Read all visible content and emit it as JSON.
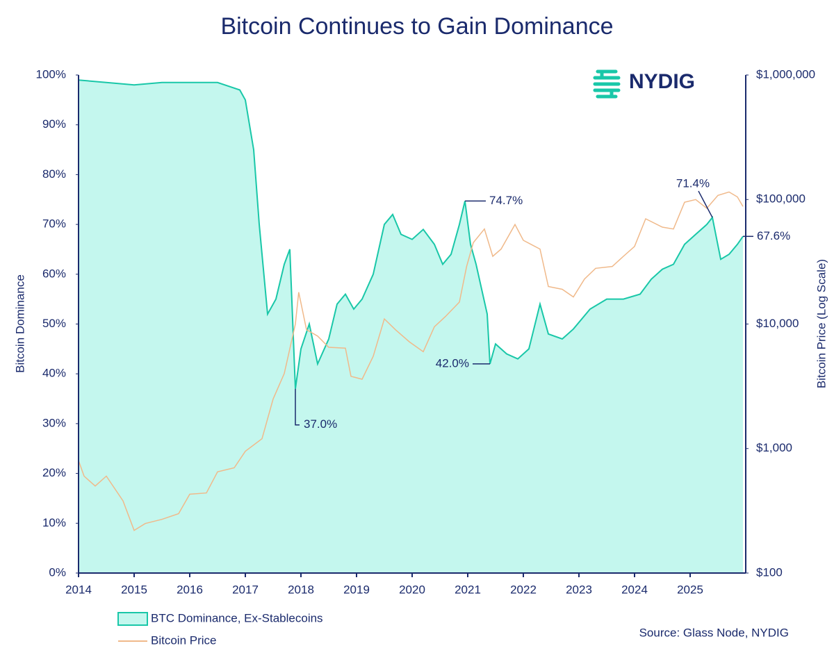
{
  "chart_data": {
    "type": "area",
    "title": "Bitcoin Continues to Gain Dominance",
    "logo": "NYDIG",
    "y_label": "Bitcoin Dominance",
    "y2_label": "Bitcoin Price (Log Scale)",
    "source": "Source: Glass Node, NYDIG",
    "xlim": [
      2014,
      2026
    ],
    "xticks": [
      2014,
      2015,
      2016,
      2017,
      2018,
      2019,
      2020,
      2021,
      2022,
      2023,
      2024,
      2025
    ],
    "ylim": [
      0,
      100
    ],
    "yticks": [
      {
        "value": 0,
        "label": "0%"
      },
      {
        "value": 10,
        "label": "10%"
      },
      {
        "value": 20,
        "label": "20%"
      },
      {
        "value": 30,
        "label": "30%"
      },
      {
        "value": 40,
        "label": "40%"
      },
      {
        "value": 50,
        "label": "50%"
      },
      {
        "value": 60,
        "label": "60%"
      },
      {
        "value": 70,
        "label": "70%"
      },
      {
        "value": 80,
        "label": "80%"
      },
      {
        "value": 90,
        "label": "90%"
      },
      {
        "value": 100,
        "label": "100%"
      }
    ],
    "y2lim": [
      100,
      1000000
    ],
    "y2scale": "log",
    "y2ticks": [
      {
        "value": 100,
        "label": "$100"
      },
      {
        "value": 1000,
        "label": "$1,000"
      },
      {
        "value": 10000,
        "label": "$10,000"
      },
      {
        "value": 100000,
        "label": "$100,000"
      },
      {
        "value": 1000000,
        "label": "$1,000,000"
      }
    ],
    "series": [
      {
        "name": "BTC Dominance, Ex-Stablecoins",
        "color": "#19c7a8",
        "fill": "#c4f7ee",
        "x": [
          2014.0,
          2014.5,
          2015.0,
          2015.5,
          2016.0,
          2016.5,
          2016.9,
          2017.0,
          2017.15,
          2017.25,
          2017.4,
          2017.55,
          2017.7,
          2017.8,
          2017.9,
          2018.0,
          2018.15,
          2018.3,
          2018.5,
          2018.65,
          2018.8,
          2018.95,
          2019.1,
          2019.3,
          2019.5,
          2019.65,
          2019.8,
          2020.0,
          2020.2,
          2020.4,
          2020.55,
          2020.7,
          2020.85,
          2020.95,
          2021.05,
          2021.15,
          2021.35,
          2021.4,
          2021.5,
          2021.7,
          2021.9,
          2022.1,
          2022.3,
          2022.45,
          2022.7,
          2022.9,
          2023.2,
          2023.5,
          2023.8,
          2024.1,
          2024.3,
          2024.5,
          2024.7,
          2024.9,
          2025.1,
          2025.3,
          2025.4,
          2025.55,
          2025.7,
          2025.85,
          2025.95
        ],
        "values": [
          99,
          98.5,
          98,
          98.5,
          98.5,
          98.5,
          97,
          95,
          85,
          70,
          52,
          55,
          62,
          65,
          37,
          45,
          50,
          42,
          47,
          54,
          56,
          53,
          55,
          60,
          70,
          72,
          68,
          67,
          69,
          66,
          62,
          64,
          70,
          74.7,
          66,
          62,
          52,
          42,
          46,
          44,
          43,
          45,
          54,
          48,
          47,
          49,
          53,
          55,
          55,
          56,
          59,
          61,
          62,
          66,
          68,
          70,
          71.4,
          63,
          64,
          66,
          67.6
        ]
      },
      {
        "name": "Bitcoin Price",
        "color": "#f0b98a",
        "axis": "y2",
        "x": [
          2014.0,
          2014.1,
          2014.3,
          2014.5,
          2014.8,
          2015.0,
          2015.2,
          2015.5,
          2015.8,
          2016.0,
          2016.3,
          2016.5,
          2016.8,
          2017.0,
          2017.3,
          2017.5,
          2017.7,
          2017.9,
          2017.96,
          2018.1,
          2018.3,
          2018.5,
          2018.8,
          2018.9,
          2019.1,
          2019.3,
          2019.5,
          2019.7,
          2019.95,
          2020.2,
          2020.4,
          2020.6,
          2020.85,
          2020.98,
          2021.1,
          2021.3,
          2021.45,
          2021.6,
          2021.85,
          2022.0,
          2022.3,
          2022.45,
          2022.7,
          2022.9,
          2023.1,
          2023.3,
          2023.6,
          2023.8,
          2024.0,
          2024.2,
          2024.5,
          2024.7,
          2024.9,
          2025.1,
          2025.3,
          2025.5,
          2025.7,
          2025.85,
          2025.95
        ],
        "values": [
          800,
          600,
          500,
          600,
          380,
          220,
          250,
          270,
          300,
          430,
          440,
          650,
          700,
          950,
          1200,
          2500,
          4000,
          10000,
          18000,
          9000,
          8000,
          6500,
          6400,
          3800,
          3600,
          5500,
          11000,
          9000,
          7200,
          6000,
          9500,
          11500,
          15000,
          29000,
          45000,
          58000,
          35000,
          40000,
          63000,
          47000,
          40000,
          20000,
          19000,
          16500,
          23000,
          28000,
          29000,
          35000,
          42000,
          70000,
          60000,
          58000,
          95000,
          100000,
          85000,
          108000,
          115000,
          105000,
          88000
        ]
      }
    ],
    "annotations": [
      {
        "x": 2017.9,
        "y": 37,
        "label": "37.0%"
      },
      {
        "x": 2021.4,
        "y": 42,
        "label": "42.0%"
      },
      {
        "x": 2020.95,
        "y": 74.7,
        "label": "74.7%"
      },
      {
        "x": 2025.4,
        "y": 71.4,
        "label": "71.4%"
      },
      {
        "x": 2025.95,
        "y": 67.6,
        "label": "67.6%"
      }
    ]
  }
}
